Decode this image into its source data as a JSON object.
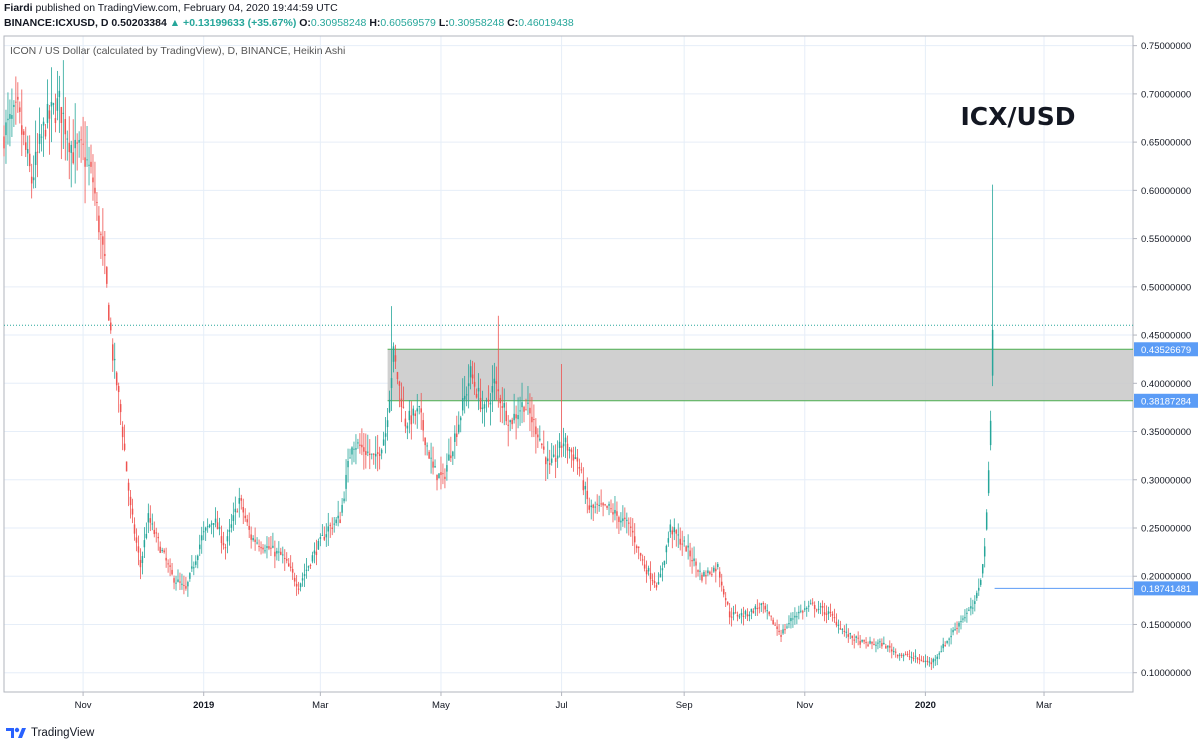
{
  "header": {
    "author": "Fiardi",
    "published": "published on TradingView.com, February 04, 2020 19:44:59 UTC",
    "symbol": "BINANCE:ICXUSD, D",
    "last": "0.50203384",
    "change": "▲ +0.13199633 (+35.67%)",
    "o_label": "O:",
    "o_value": "0.30958248",
    "h_label": "H:",
    "h_value": "0.60569579",
    "l_label": "L:",
    "l_value": "0.30958248",
    "c_label": "C:",
    "c_value": "0.46019438"
  },
  "footer": {
    "brand": "TradingView"
  },
  "chart_data": {
    "type": "candlestick",
    "chart_style": "Heikin Ashi",
    "legend": "ICON / US Dollar (calculated by TradingView), D, BINANCE, Heikin Ashi",
    "watermark": "ICX/USD",
    "ylim": [
      0.08,
      0.76
    ],
    "y_ticks": [
      "0.75000000",
      "0.70000000",
      "0.65000000",
      "0.60000000",
      "0.55000000",
      "0.50000000",
      "0.45000000",
      "0.40000000",
      "0.35000000",
      "0.30000000",
      "0.25000000",
      "0.20000000",
      "0.15000000",
      "0.10000000"
    ],
    "x_ticks": [
      {
        "label": "Nov",
        "date": "2018-11-01"
      },
      {
        "label": "2019",
        "date": "2019-01-01"
      },
      {
        "label": "Mar",
        "date": "2019-03-01"
      },
      {
        "label": "May",
        "date": "2019-05-01"
      },
      {
        "label": "Jul",
        "date": "2019-07-01"
      },
      {
        "label": "Sep",
        "date": "2019-09-01"
      },
      {
        "label": "Nov",
        "date": "2019-11-01"
      },
      {
        "label": "2020",
        "date": "2020-01-01"
      },
      {
        "label": "Mar",
        "date": "2020-03-01"
      }
    ],
    "x_start": "2018-09-22",
    "x_end": "2020-04-15",
    "zone": {
      "top": 0.43526679,
      "bottom": 0.38187284,
      "start": "2019-04-04",
      "top_label": "0.43526679",
      "bottom_label": "0.38187284"
    },
    "level_line": {
      "value": 0.18741481,
      "start": "2020-02-05",
      "label": "0.18741481"
    },
    "last_price_line": 0.46019438,
    "colors": {
      "up": "#26a69a",
      "down": "#ef5350",
      "zone": "#c8c8c8",
      "level": "#5b9cf6",
      "grid": "#e6eef8"
    },
    "path": [
      [
        "2018-09-22",
        0.66
      ],
      [
        "2018-09-29",
        0.68
      ],
      [
        "2018-10-06",
        0.61
      ],
      [
        "2018-10-13",
        0.67
      ],
      [
        "2018-10-20",
        0.69
      ],
      [
        "2018-10-27",
        0.64
      ],
      [
        "2018-11-01",
        0.64
      ],
      [
        "2018-11-06",
        0.61
      ],
      [
        "2018-11-12",
        0.52
      ],
      [
        "2018-11-16",
        0.43
      ],
      [
        "2018-11-20",
        0.37
      ],
      [
        "2018-11-25",
        0.27
      ],
      [
        "2018-11-30",
        0.21
      ],
      [
        "2018-12-04",
        0.26
      ],
      [
        "2018-12-10",
        0.23
      ],
      [
        "2018-12-16",
        0.2
      ],
      [
        "2018-12-23",
        0.185
      ],
      [
        "2018-12-31",
        0.24
      ],
      [
        "2019-01-06",
        0.26
      ],
      [
        "2019-01-12",
        0.23
      ],
      [
        "2019-01-19",
        0.28
      ],
      [
        "2019-01-25",
        0.24
      ],
      [
        "2019-02-02",
        0.23
      ],
      [
        "2019-02-10",
        0.22
      ],
      [
        "2019-02-18",
        0.19
      ],
      [
        "2019-02-25",
        0.22
      ],
      [
        "2019-03-05",
        0.25
      ],
      [
        "2019-03-11",
        0.26
      ],
      [
        "2019-03-17",
        0.34
      ],
      [
        "2019-03-24",
        0.33
      ],
      [
        "2019-03-29",
        0.32
      ],
      [
        "2019-04-03",
        0.35
      ],
      [
        "2019-04-07",
        0.43
      ],
      [
        "2019-04-13",
        0.36
      ],
      [
        "2019-04-20",
        0.37
      ],
      [
        "2019-04-27",
        0.31
      ],
      [
        "2019-05-02",
        0.3
      ],
      [
        "2019-05-10",
        0.36
      ],
      [
        "2019-05-16",
        0.41
      ],
      [
        "2019-05-23",
        0.37
      ],
      [
        "2019-05-28",
        0.4
      ],
      [
        "2019-06-05",
        0.36
      ],
      [
        "2019-06-12",
        0.38
      ],
      [
        "2019-06-19",
        0.35
      ],
      [
        "2019-06-25",
        0.31
      ],
      [
        "2019-07-02",
        0.34
      ],
      [
        "2019-07-09",
        0.32
      ],
      [
        "2019-07-15",
        0.27
      ],
      [
        "2019-07-25",
        0.27
      ],
      [
        "2019-08-05",
        0.25
      ],
      [
        "2019-08-12",
        0.21
      ],
      [
        "2019-08-19",
        0.19
      ],
      [
        "2019-08-25",
        0.25
      ],
      [
        "2019-09-02",
        0.23
      ],
      [
        "2019-09-10",
        0.2
      ],
      [
        "2019-09-18",
        0.21
      ],
      [
        "2019-09-24",
        0.16
      ],
      [
        "2019-10-02",
        0.16
      ],
      [
        "2019-10-10",
        0.17
      ],
      [
        "2019-10-20",
        0.14
      ],
      [
        "2019-10-27",
        0.16
      ],
      [
        "2019-11-05",
        0.17
      ],
      [
        "2019-11-14",
        0.16
      ],
      [
        "2019-11-22",
        0.14
      ],
      [
        "2019-12-01",
        0.13
      ],
      [
        "2019-12-10",
        0.13
      ],
      [
        "2019-12-18",
        0.12
      ],
      [
        "2019-12-27",
        0.115
      ],
      [
        "2020-01-04",
        0.11
      ],
      [
        "2020-01-11",
        0.13
      ],
      [
        "2020-01-19",
        0.155
      ],
      [
        "2020-01-26",
        0.17
      ],
      [
        "2020-01-30",
        0.21
      ],
      [
        "2020-02-01",
        0.26
      ],
      [
        "2020-02-02",
        0.31
      ],
      [
        "2020-02-03",
        0.37
      ],
      [
        "2020-02-04",
        0.46
      ]
    ],
    "spikes": [
      {
        "date": "2018-10-22",
        "high": 0.735
      },
      {
        "date": "2019-04-06",
        "high": 0.48
      },
      {
        "date": "2019-05-30",
        "high": 0.47
      },
      {
        "date": "2019-07-01",
        "high": 0.42
      },
      {
        "date": "2020-02-04",
        "high": 0.606
      }
    ]
  }
}
